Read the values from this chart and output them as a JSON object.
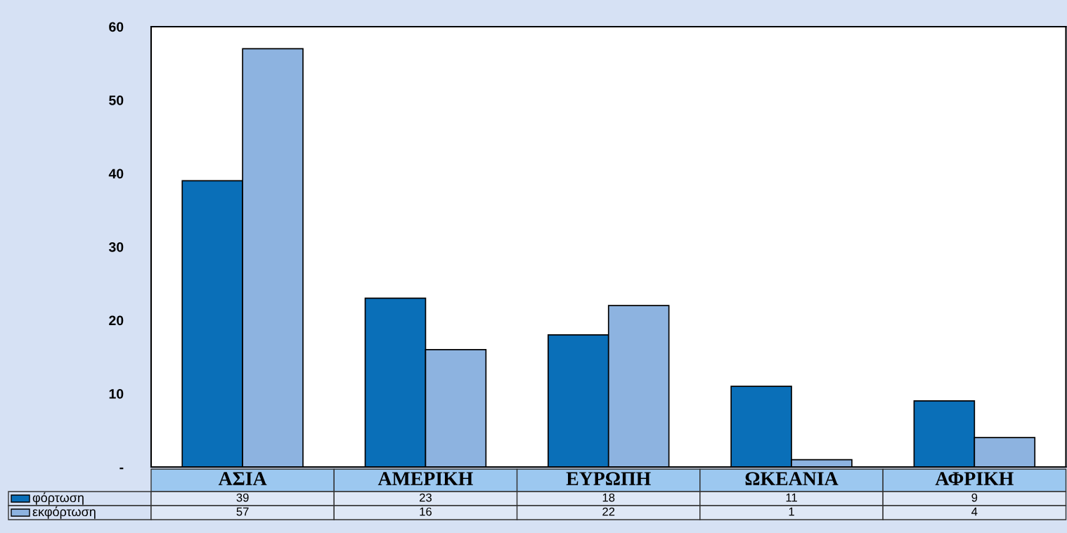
{
  "chart_data": {
    "type": "bar",
    "categories": [
      "ΑΣΙΑ",
      "ΑΜΕΡΙΚΗ",
      "ΕΥΡΩΠΗ",
      "ΩΚΕΑΝΙΑ",
      "ΑΦΡΙΚΗ"
    ],
    "series": [
      {
        "name": "φόρτωση",
        "color": "#0a6fb8",
        "values": [
          39,
          23,
          18,
          11,
          9
        ]
      },
      {
        "name": "εκφόρτωση",
        "color": "#8db3e0",
        "values": [
          57,
          16,
          22,
          1,
          4
        ]
      }
    ],
    "ylim": [
      0,
      60
    ],
    "yticks": [
      {
        "value": 0,
        "label": "-"
      },
      10,
      20,
      30,
      40,
      50,
      60
    ],
    "data_labels": true,
    "legend": "bottom",
    "grid": false
  }
}
